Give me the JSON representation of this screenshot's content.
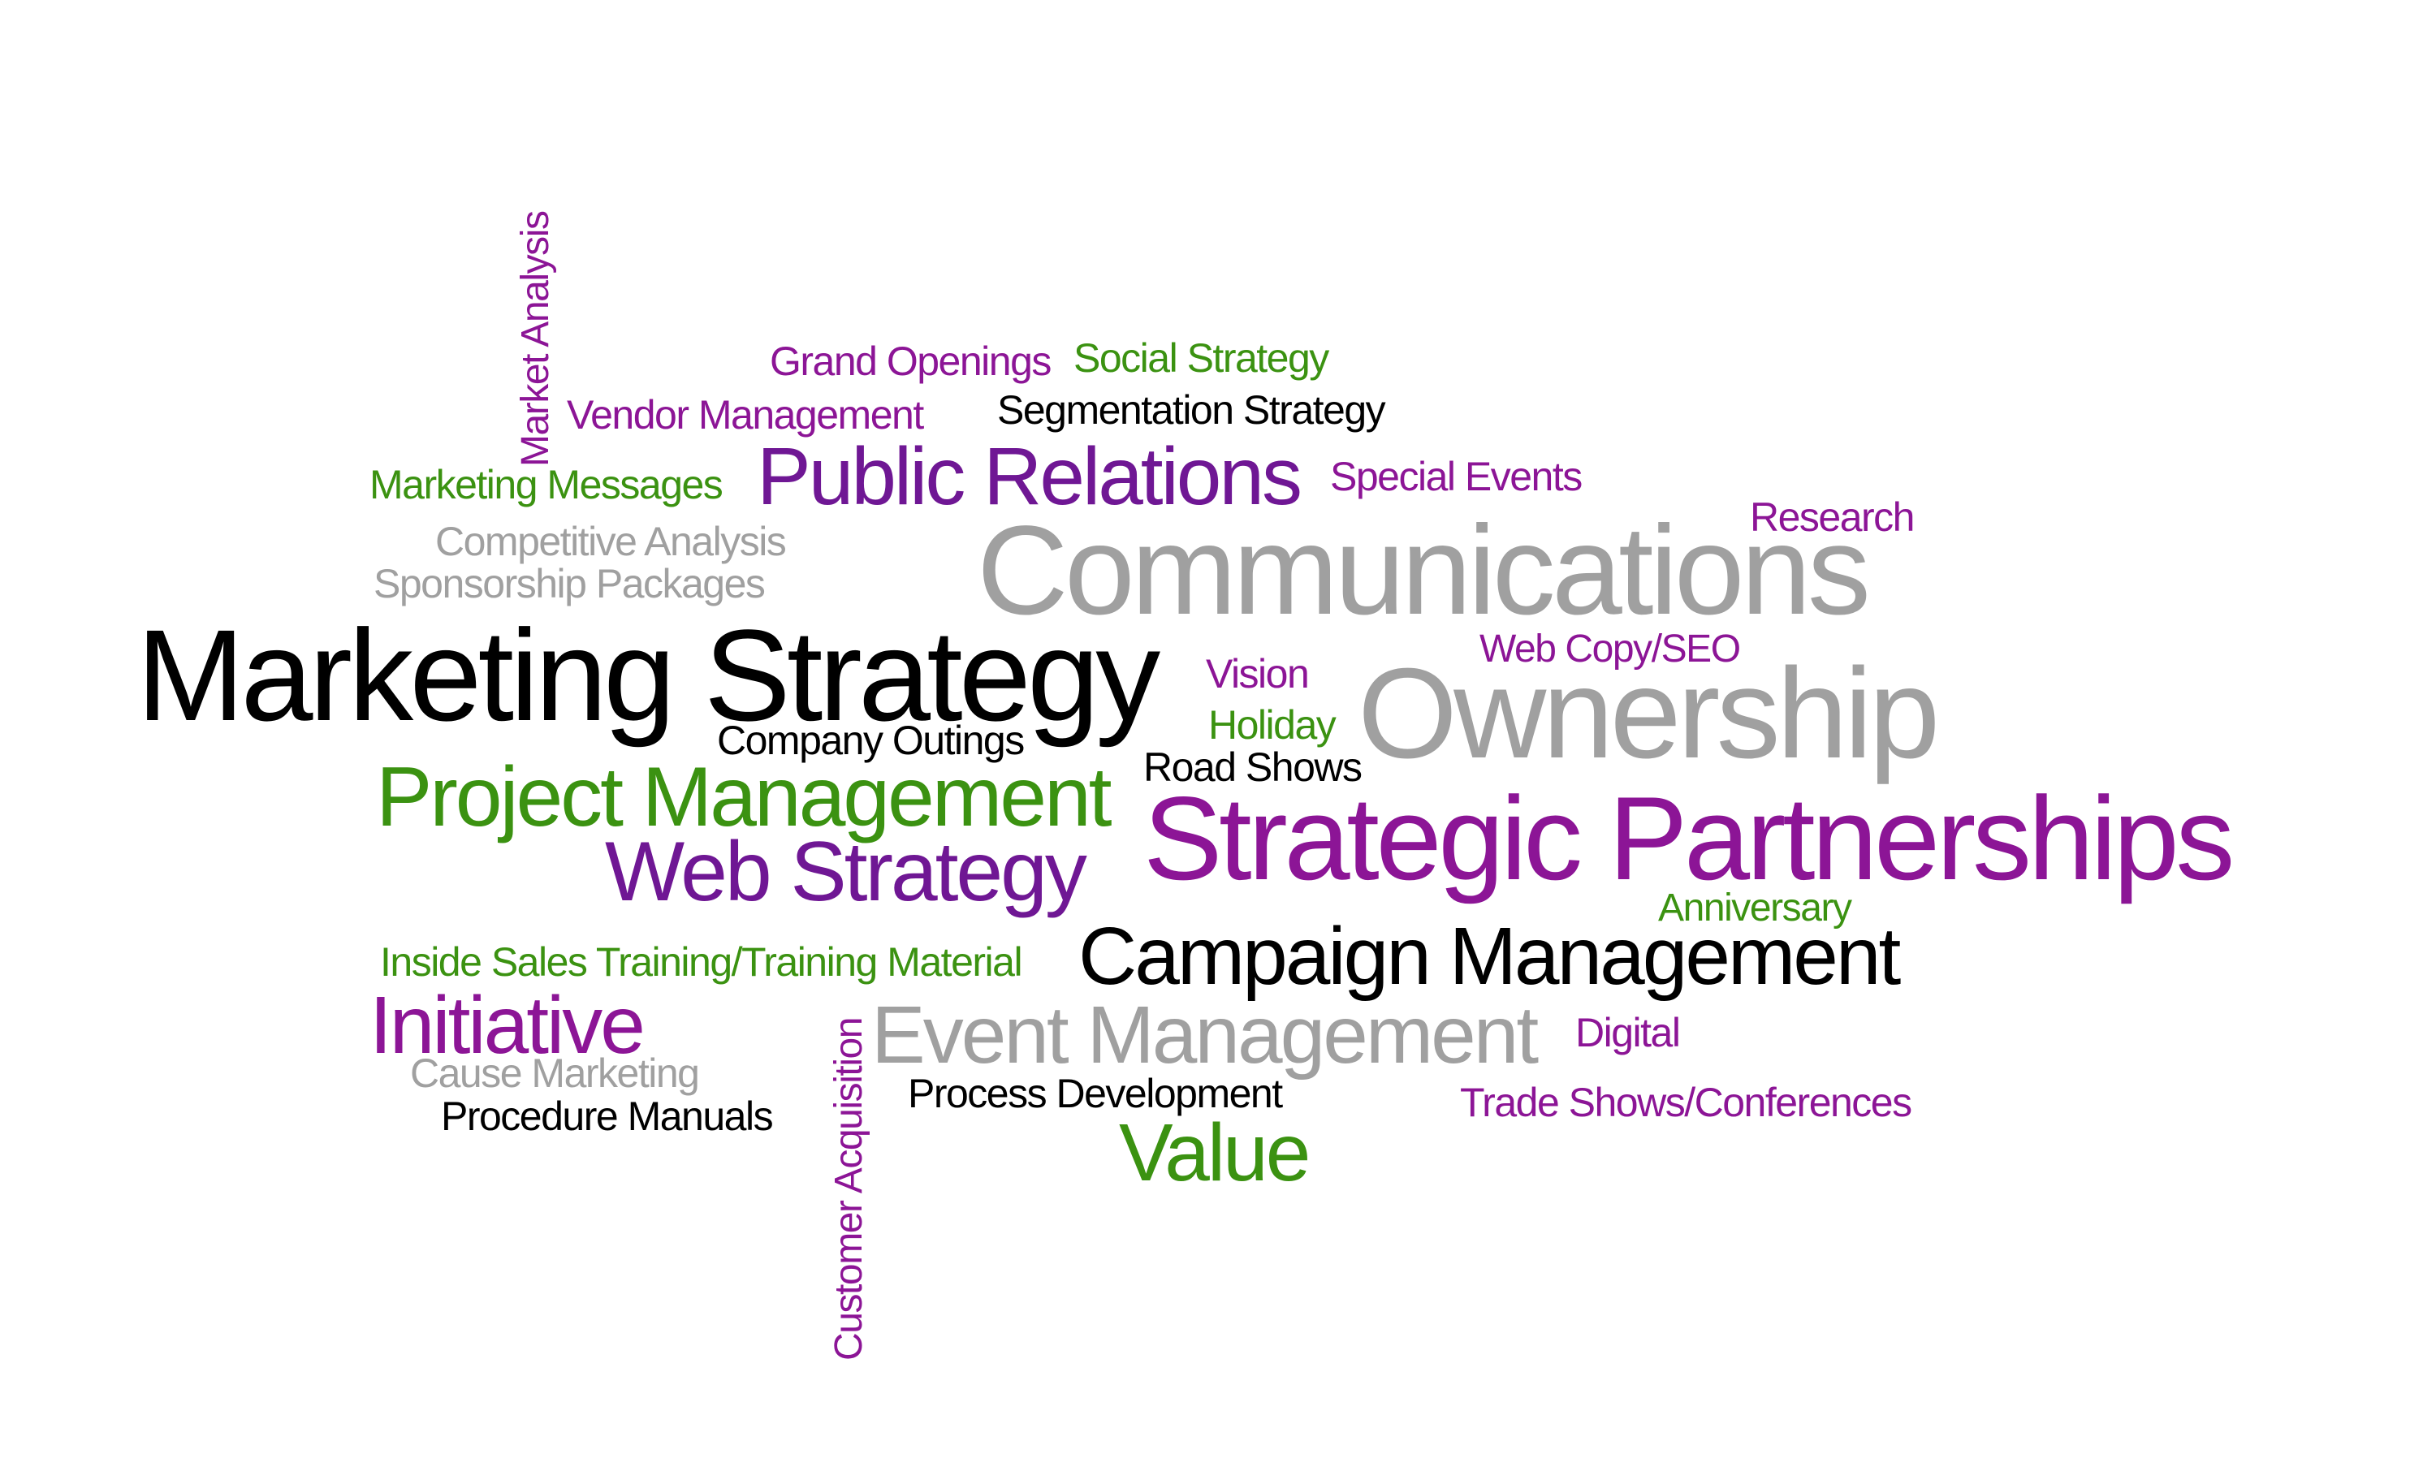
{
  "palette": {
    "purple": "#8c1596",
    "violet": "#6f1794",
    "green": "#3b9211",
    "gray": "#a0a0a0",
    "black": "#000000",
    "background": "#ffffff"
  },
  "words": [
    {
      "text": "Market Analysis",
      "color": "purple",
      "vertical": true
    },
    {
      "text": "Grand Openings",
      "color": "purple"
    },
    {
      "text": "Social Strategy",
      "color": "green"
    },
    {
      "text": "Vendor Management",
      "color": "purple"
    },
    {
      "text": "Segmentation Strategy",
      "color": "black"
    },
    {
      "text": "Marketing Messages",
      "color": "green"
    },
    {
      "text": "Public Relations",
      "color": "violet"
    },
    {
      "text": "Special Events",
      "color": "purple"
    },
    {
      "text": "Research",
      "color": "purple"
    },
    {
      "text": "Competitive Analysis",
      "color": "gray"
    },
    {
      "text": "Communications",
      "color": "gray"
    },
    {
      "text": "Sponsorship Packages",
      "color": "gray"
    },
    {
      "text": "Marketing Strategy",
      "color": "black"
    },
    {
      "text": "Web Copy/SEO",
      "color": "purple"
    },
    {
      "text": "Vision",
      "color": "purple"
    },
    {
      "text": "Ownership",
      "color": "gray"
    },
    {
      "text": "Company Outings",
      "color": "black"
    },
    {
      "text": "Holiday",
      "color": "green"
    },
    {
      "text": "Road Shows",
      "color": "black"
    },
    {
      "text": "Project Management",
      "color": "green"
    },
    {
      "text": "Strategic Partnerships",
      "color": "purple"
    },
    {
      "text": "Web Strategy",
      "color": "violet"
    },
    {
      "text": "Anniversary",
      "color": "green"
    },
    {
      "text": "Inside Sales Training/Training Material",
      "color": "green"
    },
    {
      "text": "Campaign Management",
      "color": "black"
    },
    {
      "text": "Initiative",
      "color": "purple"
    },
    {
      "text": "Event Management",
      "color": "gray"
    },
    {
      "text": "Digital",
      "color": "purple"
    },
    {
      "text": "Cause Marketing",
      "color": "gray"
    },
    {
      "text": "Process Development",
      "color": "black"
    },
    {
      "text": "Procedure Manuals",
      "color": "black"
    },
    {
      "text": "Trade Shows/Conferences",
      "color": "purple"
    },
    {
      "text": "Value",
      "color": "green"
    },
    {
      "text": "Customer Acquisition",
      "color": "purple",
      "vertical": true
    }
  ]
}
